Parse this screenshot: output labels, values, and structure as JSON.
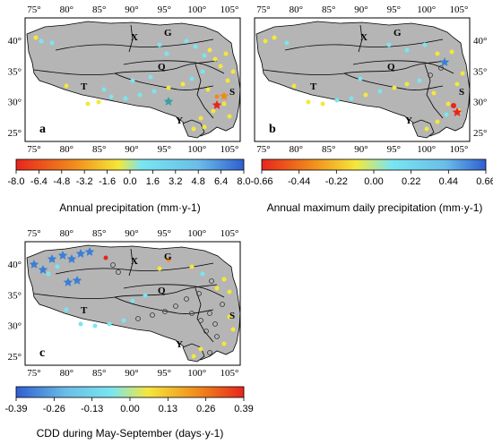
{
  "figure": {
    "lon_ticks": [
      "75°",
      "80°",
      "85°",
      "90°",
      "95°",
      "100°",
      "105°"
    ],
    "lat_ticks": [
      "40°",
      "35°",
      "30°",
      "25°"
    ],
    "region_labels": {
      "X": "X",
      "G": "G",
      "Q": "Q",
      "T": "T",
      "S": "S",
      "Y": "Y"
    },
    "colors": {
      "plateau_fill": "#b5b5b5",
      "boundary": "#000000",
      "hollow": "#333333",
      "red": "#e8251d",
      "orange": "#f08a1c",
      "yellow": "#f5e73a",
      "cyan": "#79e6f0",
      "blue": "#3a7fd6"
    },
    "panels": [
      {
        "letter": "a",
        "colorbar": {
          "ticks": [
            "-8.0",
            "-6.4",
            "-4.8",
            "-3.2",
            "-1.6",
            "0.0",
            "1.6",
            "3.2",
            "4.8",
            "6.4",
            "8.0"
          ],
          "title": "Annual precipitation (mm·y-1)"
        }
      },
      {
        "letter": "b",
        "colorbar": {
          "ticks": [
            "-0.66",
            "-0.44",
            "-0.22",
            "0.00",
            "0.22",
            "0.44",
            "0.66"
          ],
          "title": "Annual maximum daily precipitation (mm·y-1)"
        }
      },
      {
        "letter": "c",
        "colorbar": {
          "ticks": [
            "-0.39",
            "-0.26",
            "-0.13",
            "0.00",
            "0.13",
            "0.26",
            "0.39"
          ],
          "title": "CDD during May-September (days·y-1)"
        }
      }
    ]
  }
}
